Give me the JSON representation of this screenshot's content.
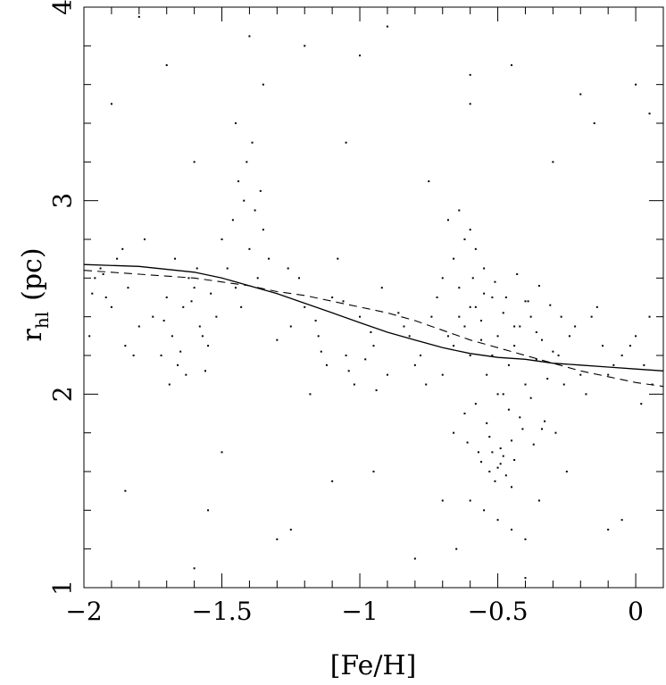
{
  "chart_data": {
    "type": "scatter",
    "title": "",
    "xlabel": "[Fe/H]",
    "ylabel_main": "r",
    "ylabel_sub": "hl",
    "ylabel_unit": "(pc)",
    "xlim": [
      -2.0,
      0.1
    ],
    "ylim": [
      1.0,
      4.0
    ],
    "xticks": [
      -2,
      -1.5,
      -1,
      -0.5,
      0
    ],
    "xtick_labels": [
      "−2",
      "−1.5",
      "−1",
      "−0.5",
      "0"
    ],
    "yticks": [
      1,
      2,
      3,
      4
    ],
    "ytick_labels": [
      "1",
      "2",
      "3",
      "4"
    ],
    "grid": false,
    "legend": "none",
    "point_color": "#000000",
    "series": [
      {
        "style": "points",
        "x": [
          -1.72,
          -1.68,
          -1.64,
          -1.6,
          -1.58,
          -1.66,
          -1.62,
          -1.55,
          -1.7,
          -1.52,
          -1.67,
          -1.63,
          -1.59,
          -1.69,
          -1.57,
          -1.61,
          -1.65,
          -1.54,
          -1.71,
          -1.56,
          -1.5,
          -1.46,
          -1.42,
          -1.38,
          -1.35,
          -1.44,
          -1.4,
          -1.36,
          -1.48,
          -1.33,
          -1.41,
          -1.37,
          -1.45,
          -1.39,
          -1.43,
          -1.25,
          -1.2,
          -1.15,
          -1.1,
          -1.05,
          -1.0,
          -0.95,
          -0.9,
          -1.22,
          -1.12,
          -1.02,
          -0.92,
          -1.18,
          -1.08,
          -0.98,
          -1.3,
          -1.16,
          -1.06,
          -0.96,
          -0.86,
          -1.26,
          -1.14,
          -1.04,
          -0.94,
          -0.84,
          -0.82,
          -0.78,
          -0.74,
          -0.7,
          -0.66,
          -0.62,
          -0.58,
          -0.8,
          -0.76,
          -0.72,
          -0.68,
          -0.64,
          -0.6,
          -0.56,
          -0.54,
          -0.52,
          -0.5,
          -0.48,
          -0.46,
          -0.44,
          -0.42,
          -0.4,
          -0.38,
          -0.36,
          -0.34,
          -0.32,
          -0.3,
          -0.62,
          -0.58,
          -0.54,
          -0.5,
          -0.46,
          -0.42,
          -0.38,
          -0.34,
          -0.6,
          -0.56,
          -0.52,
          -0.48,
          -0.44,
          -0.4,
          -0.36,
          -0.66,
          -0.61,
          -0.57,
          -0.53,
          -0.49,
          -0.45,
          -0.41,
          -0.37,
          -0.33,
          -0.29,
          -0.64,
          -0.59,
          -0.55,
          -0.51,
          -0.47,
          -0.43,
          -0.39,
          -0.35,
          -0.31,
          -0.27,
          -0.56,
          -0.53,
          -0.5,
          -0.47,
          -0.44,
          -0.51,
          -0.48,
          -0.45,
          -0.52,
          -0.49,
          -0.7,
          -0.66,
          -0.62,
          -0.58,
          -0.55,
          -0.68,
          -0.64,
          -0.6,
          -0.28,
          -0.24,
          -0.2,
          -0.16,
          -0.12,
          -0.08,
          -0.26,
          -0.22,
          -0.18,
          -0.14,
          -0.1,
          -0.05,
          0.0,
          0.03,
          0.06,
          -0.02,
          0.02,
          0.05,
          -1.96,
          -1.92,
          -1.88,
          -1.84,
          -1.98,
          -1.94,
          -1.9,
          -1.86,
          -1.82,
          -1.78,
          -1.75,
          -1.8,
          -1.85,
          -1.93,
          -1.97,
          -1.9,
          -1.7,
          -1.6,
          -1.45,
          -1.35,
          -1.2,
          -1.05,
          -0.9,
          -0.75,
          -0.6,
          -0.45,
          -0.3,
          -0.15,
          0.0,
          -1.85,
          -1.55,
          -1.25,
          -0.95,
          -0.65,
          -0.35,
          -0.05,
          -1.8,
          -1.4,
          -1.0,
          -0.6,
          -0.2,
          0.05,
          -1.6,
          -1.3,
          -0.8,
          -0.4,
          -0.1,
          -1.5,
          -1.1,
          -0.7,
          -0.25,
          -0.55,
          -0.5,
          -0.45,
          -0.6,
          -0.4
        ],
        "y": [
          2.2,
          2.3,
          2.45,
          2.55,
          2.35,
          2.15,
          2.6,
          2.25,
          2.5,
          2.4,
          2.7,
          2.1,
          2.65,
          2.05,
          2.3,
          2.48,
          2.22,
          2.52,
          2.38,
          2.12,
          2.8,
          2.9,
          3.0,
          2.95,
          2.85,
          3.1,
          2.75,
          3.05,
          2.65,
          2.7,
          3.2,
          2.6,
          2.55,
          3.3,
          2.45,
          2.35,
          2.45,
          2.3,
          2.5,
          2.2,
          2.4,
          2.25,
          2.1,
          2.6,
          2.15,
          2.05,
          2.55,
          2.0,
          2.7,
          2.18,
          2.28,
          2.38,
          2.48,
          2.32,
          2.42,
          2.65,
          2.22,
          2.12,
          2.02,
          2.35,
          2.3,
          2.2,
          2.4,
          2.1,
          2.25,
          2.35,
          2.45,
          2.15,
          2.05,
          2.5,
          2.3,
          2.4,
          2.2,
          2.28,
          2.1,
          2.2,
          2.3,
          2.0,
          2.15,
          2.25,
          2.35,
          2.05,
          2.4,
          2.18,
          2.28,
          2.08,
          2.22,
          1.9,
          1.95,
          1.85,
          2.0,
          1.92,
          1.88,
          1.98,
          1.82,
          2.45,
          2.38,
          2.5,
          2.42,
          2.35,
          2.48,
          2.32,
          1.8,
          1.75,
          1.7,
          1.78,
          1.72,
          1.76,
          1.82,
          1.74,
          1.86,
          1.8,
          2.55,
          2.6,
          2.52,
          2.58,
          2.5,
          2.62,
          2.48,
          2.56,
          2.46,
          2.4,
          1.65,
          1.6,
          1.62,
          1.58,
          1.66,
          1.55,
          1.68,
          1.52,
          1.7,
          1.64,
          2.6,
          2.7,
          2.8,
          2.75,
          2.65,
          2.9,
          2.95,
          2.85,
          2.2,
          2.3,
          2.1,
          2.4,
          2.25,
          2.15,
          2.05,
          2.35,
          2.0,
          2.45,
          2.1,
          2.2,
          2.3,
          2.15,
          2.05,
          2.25,
          1.95,
          2.4,
          2.6,
          2.5,
          2.7,
          2.55,
          2.3,
          2.65,
          2.45,
          2.75,
          2.2,
          2.8,
          2.4,
          2.35,
          2.25,
          2.62,
          2.52,
          3.5,
          3.7,
          3.2,
          3.4,
          3.6,
          3.8,
          3.3,
          3.9,
          3.1,
          3.5,
          3.7,
          3.2,
          3.4,
          3.6,
          1.5,
          1.4,
          1.3,
          1.6,
          1.2,
          1.45,
          1.35,
          3.95,
          3.85,
          3.75,
          3.65,
          3.55,
          3.45,
          1.1,
          1.25,
          1.15,
          1.05,
          1.3,
          1.7,
          1.55,
          1.45,
          1.6,
          1.4,
          1.35,
          1.3,
          1.45,
          1.25
        ]
      },
      {
        "style": "solid-line",
        "x": [
          -2.0,
          -1.8,
          -1.6,
          -1.5,
          -1.4,
          -1.3,
          -1.2,
          -1.1,
          -1.0,
          -0.9,
          -0.8,
          -0.7,
          -0.6,
          -0.5,
          -0.4,
          -0.3,
          -0.2,
          -0.1,
          0.0,
          0.1
        ],
        "y": [
          2.67,
          2.66,
          2.63,
          2.6,
          2.56,
          2.52,
          2.47,
          2.42,
          2.37,
          2.32,
          2.28,
          2.24,
          2.21,
          2.19,
          2.18,
          2.16,
          2.15,
          2.14,
          2.13,
          2.12
        ]
      },
      {
        "style": "dashed-line",
        "x": [
          -2.0,
          -1.8,
          -1.6,
          -1.5,
          -1.4,
          -1.3,
          -1.2,
          -1.1,
          -1.0,
          -0.9,
          -0.8,
          -0.7,
          -0.6,
          -0.5,
          -0.4,
          -0.3,
          -0.2,
          -0.1,
          0.0,
          0.1
        ],
        "y": [
          2.64,
          2.62,
          2.6,
          2.58,
          2.56,
          2.53,
          2.51,
          2.48,
          2.45,
          2.42,
          2.38,
          2.33,
          2.28,
          2.24,
          2.2,
          2.16,
          2.12,
          2.09,
          2.06,
          2.04
        ]
      }
    ]
  }
}
